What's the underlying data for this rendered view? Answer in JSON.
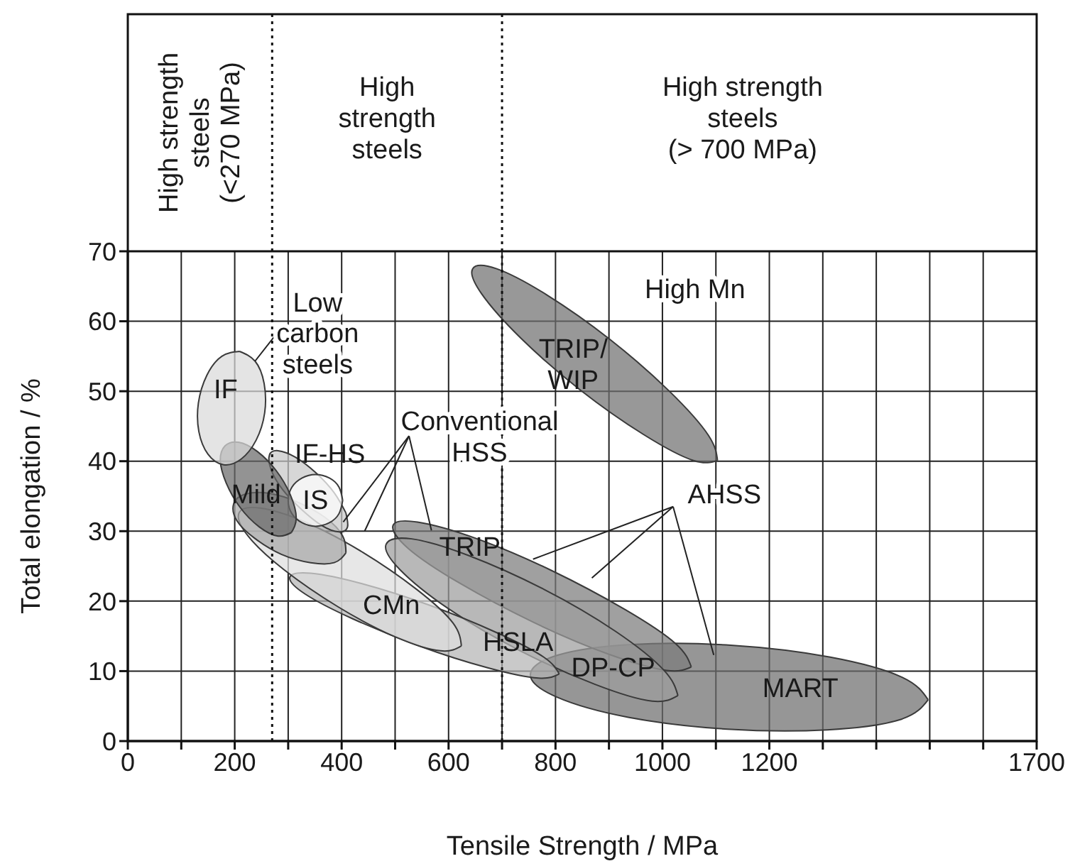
{
  "chart_data": {
    "type": "area",
    "xlabel": "Tensile Strength / MPa",
    "ylabel": "Total elongation / %",
    "xlim": [
      0,
      1700
    ],
    "ylim": [
      0,
      70
    ],
    "xticks": [
      0,
      {
        "value": 100,
        "label": null
      },
      200,
      {
        "value": 300,
        "label": null
      },
      400,
      {
        "value": 500,
        "label": null
      },
      600,
      {
        "value": 700,
        "label": null
      },
      800,
      {
        "value": 900,
        "label": null
      },
      1000,
      {
        "value": 1100,
        "label": null
      },
      1200,
      {
        "value": 1300,
        "label": null
      },
      {
        "value": 1400,
        "label": null
      },
      {
        "value": 1500,
        "label": null
      },
      {
        "value": 1600,
        "label": null
      },
      1700
    ],
    "yticks": [
      0,
      10,
      20,
      30,
      40,
      50,
      60,
      70
    ],
    "grid": true,
    "marker": "none",
    "line_style": "solid",
    "series": [
      {
        "color": "#707070",
        "x": [
          1103,
          1086,
          1013,
          902,
          783,
          690,
          645,
          662,
          735,
          846,
          965,
          1058,
          1103
        ],
        "values": [
          40.1,
          43.7,
          50.0,
          57.4,
          63.8,
          67.5,
          67.5,
          63.9,
          57.6,
          50.2,
          43.8,
          40.1,
          40.1
        ]
      },
      {
        "color": "#6e6e6e",
        "x": [
          1497,
          1449,
          1314,
          1128,
          942,
          805,
          753,
          802,
          936,
          1122,
          1308,
          1446,
          1497
        ],
        "values": [
          5.9,
          9.1,
          12.0,
          13.7,
          13.8,
          12.3,
          9.5,
          6.3,
          3.4,
          1.7,
          1.6,
          3.1,
          5.9
        ]
      },
      {
        "color": "#7c7c7c",
        "x": [
          1054,
          1025,
          930,
          792,
          650,
          542,
          496,
          525,
          620,
          758,
          900,
          1008,
          1054
        ],
        "values": [
          10.6,
          13.9,
          18.8,
          24.4,
          29.0,
          31.3,
          30.8,
          27.5,
          22.6,
          17.0,
          12.4,
          10.1,
          10.6
        ]
      },
      {
        "color": "#9c9c9c",
        "x": [
          1029,
          1003,
          912,
          778,
          638,
          531,
          483,
          509,
          600,
          734,
          874,
          981,
          1029
        ],
        "values": [
          6.5,
          10.1,
          15.7,
          21.7,
          26.5,
          28.9,
          28.1,
          24.5,
          18.9,
          12.9,
          8.1,
          5.7,
          6.5
        ]
      },
      {
        "color": "#b4b4b4",
        "x": [
          807,
          778,
          690,
          565,
          438,
          342,
          303,
          332,
          420,
          545,
          672,
          768,
          807
        ],
        "values": [
          9.6,
          12.0,
          15.5,
          19.4,
          22.5,
          24.0,
          23.4,
          21.0,
          17.5,
          13.6,
          10.5,
          9.0,
          9.6
        ]
      },
      {
        "color": "#dedede",
        "x": [
          624,
          608,
          540,
          439,
          332,
          248,
          208,
          225,
          292,
          393,
          500,
          585,
          624
        ],
        "values": [
          13.6,
          16.9,
          21.7,
          27.0,
          31.3,
          33.3,
          32.6,
          29.3,
          24.5,
          19.2,
          14.9,
          12.9,
          13.6
        ]
      },
      {
        "color": "#a8a8a8",
        "x": [
          408,
          402,
          370,
          319,
          265,
          220,
          198,
          204,
          237,
          287,
          342,
          386,
          408
        ],
        "values": [
          26.9,
          29.3,
          31.9,
          34.1,
          35.4,
          35.3,
          33.9,
          31.5,
          29.0,
          26.7,
          25.5,
          25.5,
          26.9
        ]
      },
      {
        "color": "#c8c8c8",
        "x": [
          408,
          386,
          351,
          313,
          281,
          265,
          268,
          290,
          325,
          363,
          395,
          411,
          408
        ],
        "values": [
          32.6,
          35.5,
          38.4,
          40.6,
          41.5,
          40.9,
          38.8,
          35.9,
          33.1,
          30.8,
          29.9,
          30.6,
          32.6
        ]
      },
      {
        "color": "#ffffff",
        "x": [
          402,
          395,
          377,
          351,
          326,
          307,
          300,
          307,
          326,
          351,
          377,
          395,
          402
        ],
        "values": [
          34.4,
          36.3,
          37.6,
          38.1,
          37.6,
          36.3,
          34.4,
          32.5,
          31.2,
          30.7,
          31.2,
          32.5,
          34.4
        ]
      },
      {
        "color": "#6a6a6a",
        "x": [
          306,
          315,
          304,
          278,
          242,
          207,
          182,
          173,
          184,
          210,
          246,
          281,
          306
        ],
        "values": [
          29.8,
          31.9,
          35.2,
          38.6,
          41.4,
          42.7,
          42.2,
          40.1,
          36.9,
          33.4,
          30.6,
          29.3,
          29.8
        ]
      },
      {
        "color": "#dadada",
        "x": [
          209,
          238,
          255,
          256,
          240,
          212,
          179,
          150,
          133,
          132,
          148,
          176,
          209
        ],
        "values": [
          55.7,
          54.3,
          51.1,
          46.9,
          43.0,
          40.3,
          39.5,
          41.0,
          44.2,
          48.3,
          52.3,
          55.0,
          55.7
        ]
      }
    ],
    "ref_lines": [
      {
        "axis": "x",
        "value": 270,
        "line_style": "dotted"
      },
      {
        "axis": "x",
        "value": 700,
        "line_style": "dotted"
      }
    ],
    "annotations": [
      "High strength\nsteels\n(<270 MPa)",
      "High\nstrength\nsteels",
      "High strength\nsteels\n(> 700 MPa)",
      "IF",
      "Mild",
      "IF-HS",
      "IS",
      "CMn",
      "HSLA",
      "DP-CP",
      "TRIP",
      "TRIP/\nWIP",
      "MART",
      "High Mn",
      {
        "text": "Low\ncarbon\nsteels",
        "x": 238,
        "y": 54.3
      },
      {
        "text": "Conventional\nHSS",
        "x": 403,
        "y": 31.3
      },
      {
        "text": "AHSS",
        "x": 758,
        "y": 26.0
      }
    ]
  }
}
